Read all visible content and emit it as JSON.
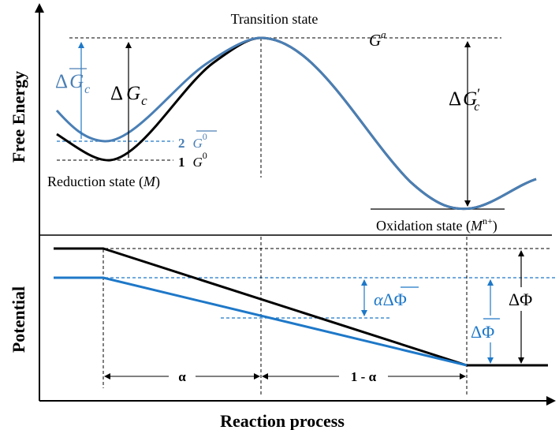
{
  "axes": {
    "y_upper_label": "Free Energy",
    "y_lower_label": "Potential",
    "x_label": "Reaction process"
  },
  "states": {
    "transition": "Transition state",
    "reduction_prefix": "Reduction state (",
    "reduction_symbol": "M",
    "reduction_suffix": ")",
    "oxidation_prefix": "Oxidation state (",
    "oxidation_symbol": "M",
    "oxidation_superscript": "n+",
    "oxidation_suffix": ")"
  },
  "energy_levels": {
    "g_a_symbol": "G",
    "g_a_superscript": "a",
    "level2_number": "2",
    "level2_symbol": "G",
    "level2_superscript": "0",
    "level1_number": "1",
    "level1_symbol": "G",
    "level1_superscript": "0"
  },
  "barriers": {
    "delta": "Δ",
    "dgc_bar_letter": "G",
    "dgc_bar_subscript": "c",
    "dgc_letter": "G",
    "dgc_subscript": "c",
    "dgc_prime_letter": "G",
    "dgc_prime_subscript": "c",
    "dgc_prime_mark": "′"
  },
  "potential": {
    "alpha_prefix": "α",
    "delta": "Δ",
    "phi": "Φ",
    "alpha_segment": "α",
    "one_minus_alpha_segment": "1 - α"
  },
  "colors": {
    "black_curve": "#000000",
    "blue_curve": "#1e78c8",
    "blue_energy_curve": "#4a7fb5"
  }
}
